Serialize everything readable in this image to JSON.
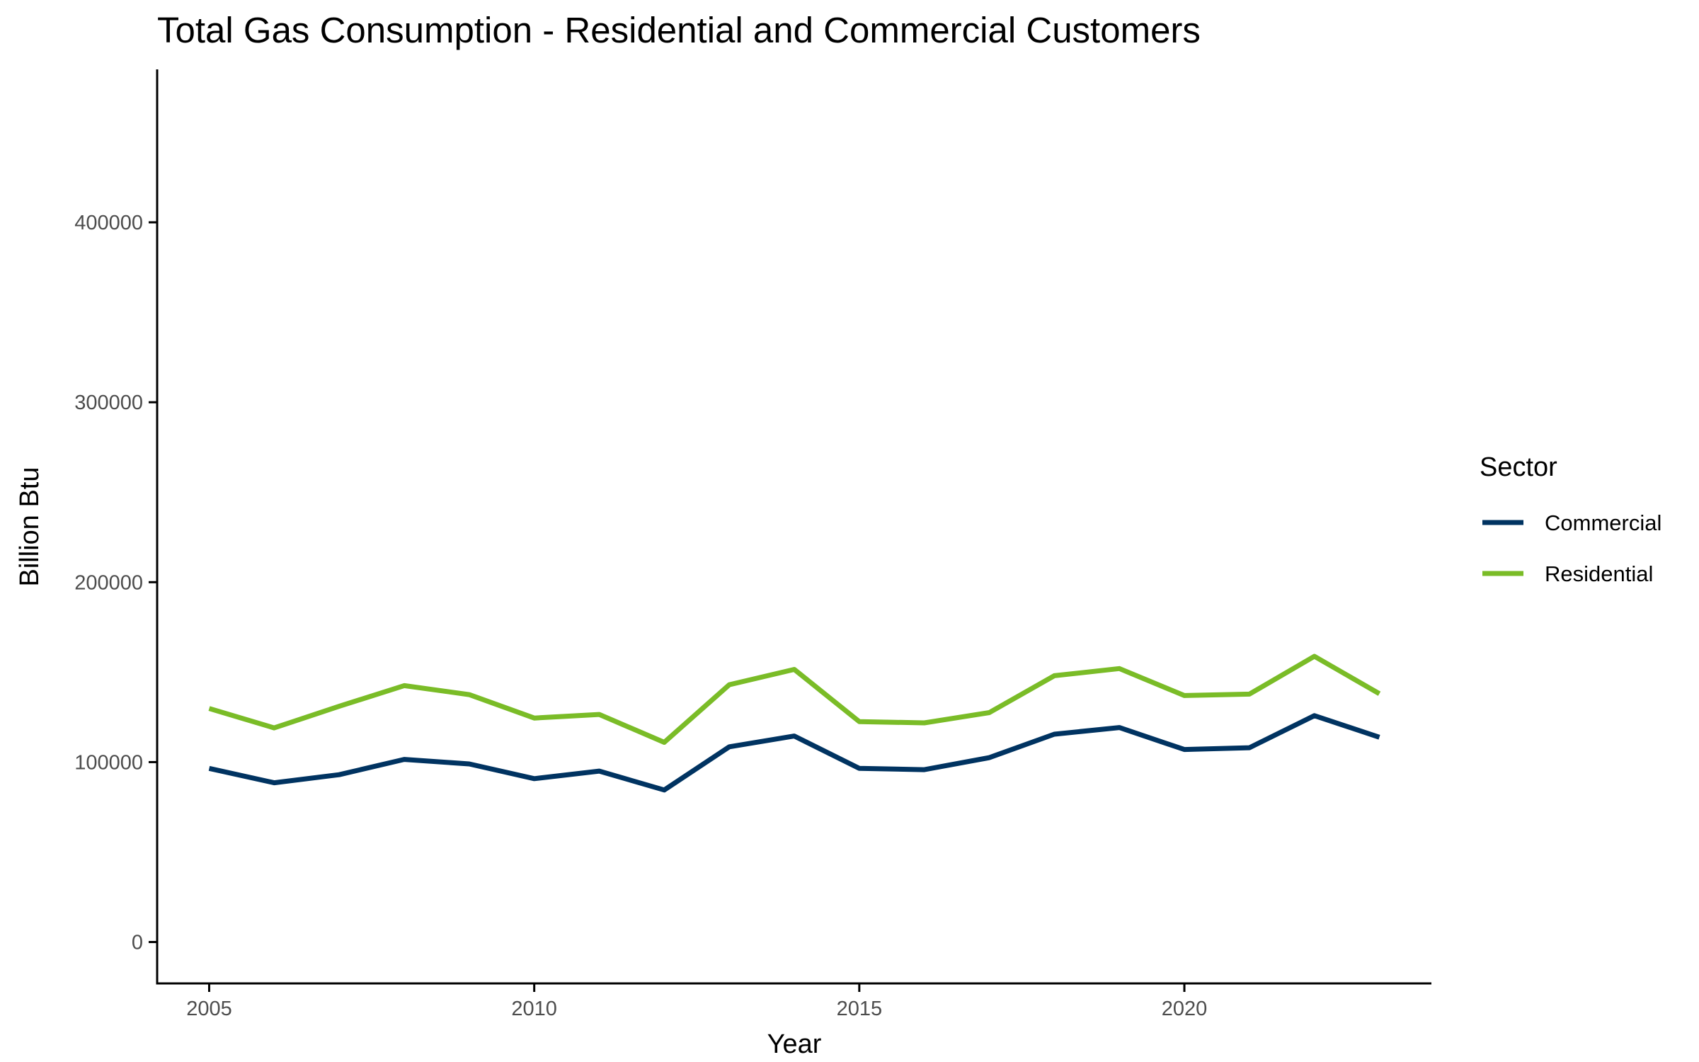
{
  "chart_data": {
    "type": "line",
    "title": "Total Gas Consumption - Residential and Commercial Customers",
    "xlabel": "Year",
    "ylabel": "Billion Btu",
    "xlim": [
      2004.2,
      2023.8
    ],
    "ylim": [
      -23000,
      485000
    ],
    "x_ticks": [
      2005,
      2010,
      2015,
      2020
    ],
    "x_tick_labels": [
      "2005",
      "2010",
      "2015",
      "2020"
    ],
    "y_ticks": [
      0,
      100000,
      200000,
      300000,
      400000
    ],
    "y_tick_labels": [
      "0",
      "100000",
      "200000",
      "300000",
      "400000"
    ],
    "grid": false,
    "legend": {
      "title": "Sector",
      "position": "right"
    },
    "x": [
      2005,
      2006,
      2007,
      2008,
      2009,
      2010,
      2011,
      2012,
      2013,
      2014,
      2015,
      2016,
      2017,
      2018,
      2019,
      2020,
      2021,
      2022,
      2023
    ],
    "series": [
      {
        "name": "Commercial",
        "color": "#003361",
        "values": [
          96500,
          88500,
          93000,
          101500,
          99000,
          90800,
          95000,
          84500,
          108500,
          114500,
          96500,
          95800,
          102500,
          115500,
          119200,
          107000,
          108000,
          125800,
          113800
        ]
      },
      {
        "name": "Residential",
        "color": "#7ABC27",
        "values": [
          129800,
          119000,
          131000,
          142500,
          137500,
          124500,
          126500,
          111000,
          143000,
          151500,
          122500,
          121800,
          127500,
          148000,
          152000,
          137000,
          137800,
          158800,
          138000
        ]
      }
    ]
  }
}
